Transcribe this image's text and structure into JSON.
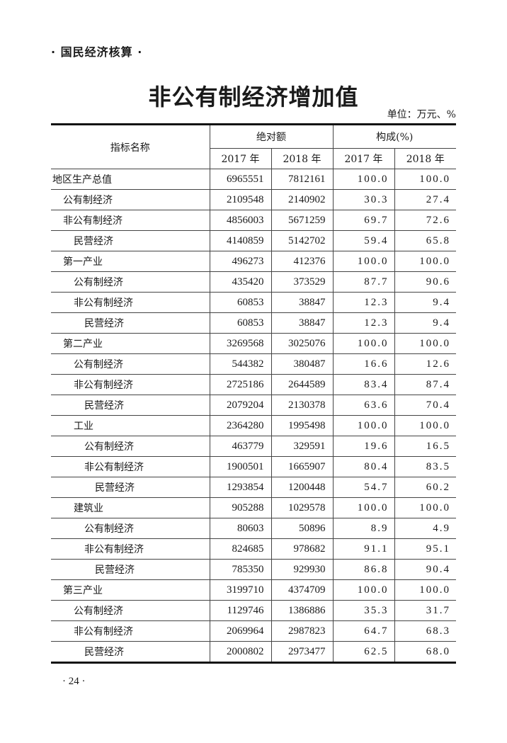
{
  "section_header": "· 国民经济核算 ·",
  "title": "非公有制经济增加值",
  "unit": "单位：万元、%",
  "table": {
    "header": {
      "indicator": "指标名称",
      "absolute": "绝对额",
      "composition": "构成(%)",
      "years": [
        "2017 年",
        "2018 年",
        "2017 年",
        "2018 年"
      ]
    },
    "rows": [
      {
        "name": "地区生产总值",
        "level": 0,
        "v2017": "6965551",
        "v2018": "7812161",
        "p2017": "100.0",
        "p2018": "100.0"
      },
      {
        "name": "公有制经济",
        "level": 1,
        "v2017": "2109548",
        "v2018": "2140902",
        "p2017": "30.3",
        "p2018": "27.4"
      },
      {
        "name": "非公有制经济",
        "level": 1,
        "v2017": "4856003",
        "v2018": "5671259",
        "p2017": "69.7",
        "p2018": "72.6"
      },
      {
        "name": "民营经济",
        "level": 2,
        "v2017": "4140859",
        "v2018": "5142702",
        "p2017": "59.4",
        "p2018": "65.8"
      },
      {
        "name": "第一产业",
        "level": 1,
        "v2017": "496273",
        "v2018": "412376",
        "p2017": "100.0",
        "p2018": "100.0"
      },
      {
        "name": "公有制经济",
        "level": 2,
        "v2017": "435420",
        "v2018": "373529",
        "p2017": "87.7",
        "p2018": "90.6"
      },
      {
        "name": "非公有制经济",
        "level": 2,
        "v2017": "60853",
        "v2018": "38847",
        "p2017": "12.3",
        "p2018": "9.4"
      },
      {
        "name": "民营经济",
        "level": 3,
        "v2017": "60853",
        "v2018": "38847",
        "p2017": "12.3",
        "p2018": "9.4"
      },
      {
        "name": "第二产业",
        "level": 1,
        "v2017": "3269568",
        "v2018": "3025076",
        "p2017": "100.0",
        "p2018": "100.0"
      },
      {
        "name": "公有制经济",
        "level": 2,
        "v2017": "544382",
        "v2018": "380487",
        "p2017": "16.6",
        "p2018": "12.6"
      },
      {
        "name": "非公有制经济",
        "level": 2,
        "v2017": "2725186",
        "v2018": "2644589",
        "p2017": "83.4",
        "p2018": "87.4"
      },
      {
        "name": "民营经济",
        "level": 3,
        "v2017": "2079204",
        "v2018": "2130378",
        "p2017": "63.6",
        "p2018": "70.4"
      },
      {
        "name": "工业",
        "level": 2,
        "v2017": "2364280",
        "v2018": "1995498",
        "p2017": "100.0",
        "p2018": "100.0"
      },
      {
        "name": "公有制经济",
        "level": 3,
        "v2017": "463779",
        "v2018": "329591",
        "p2017": "19.6",
        "p2018": "16.5"
      },
      {
        "name": "非公有制经济",
        "level": 3,
        "v2017": "1900501",
        "v2018": "1665907",
        "p2017": "80.4",
        "p2018": "83.5"
      },
      {
        "name": "民营经济",
        "level": 4,
        "v2017": "1293854",
        "v2018": "1200448",
        "p2017": "54.7",
        "p2018": "60.2"
      },
      {
        "name": "建筑业",
        "level": 2,
        "v2017": "905288",
        "v2018": "1029578",
        "p2017": "100.0",
        "p2018": "100.0"
      },
      {
        "name": "公有制经济",
        "level": 3,
        "v2017": "80603",
        "v2018": "50896",
        "p2017": "8.9",
        "p2018": "4.9"
      },
      {
        "name": "非公有制经济",
        "level": 3,
        "v2017": "824685",
        "v2018": "978682",
        "p2017": "91.1",
        "p2018": "95.1"
      },
      {
        "name": "民营经济",
        "level": 4,
        "v2017": "785350",
        "v2018": "929930",
        "p2017": "86.8",
        "p2018": "90.4"
      },
      {
        "name": "第三产业",
        "level": 1,
        "v2017": "3199710",
        "v2018": "4374709",
        "p2017": "100.0",
        "p2018": "100.0"
      },
      {
        "name": "公有制经济",
        "level": 2,
        "v2017": "1129746",
        "v2018": "1386886",
        "p2017": "35.3",
        "p2018": "31.7"
      },
      {
        "name": "非公有制经济",
        "level": 2,
        "v2017": "2069964",
        "v2018": "2987823",
        "p2017": "64.7",
        "p2018": "68.3"
      },
      {
        "name": "民营经济",
        "level": 3,
        "v2017": "2000802",
        "v2018": "2973477",
        "p2017": "62.5",
        "p2018": "68.0"
      }
    ]
  },
  "page_number": "· 24 ·"
}
